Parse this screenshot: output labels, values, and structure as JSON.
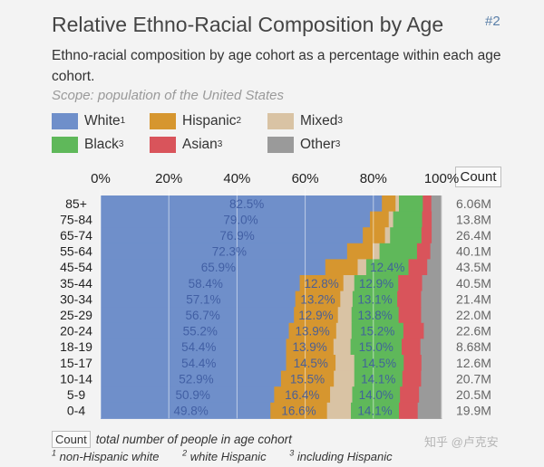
{
  "title": "Relative Ethno-Racial Composition by Age",
  "badge": "#2",
  "subtitle": "Ethno-racial composition by age cohort as a percentage within each age cohort.",
  "scope": "Scope: population of the United States",
  "legend": [
    {
      "label": "White",
      "sup": "1",
      "color": "#6f8fca"
    },
    {
      "label": "Hispanic",
      "sup": "2",
      "color": "#d6962f"
    },
    {
      "label": "Mixed",
      "sup": "3",
      "color": "#d9c3a4"
    },
    {
      "label": "Black",
      "sup": "3",
      "color": "#5fb85a"
    },
    {
      "label": "Asian",
      "sup": "3",
      "color": "#d9545b"
    },
    {
      "label": "Other",
      "sup": "3",
      "color": "#9a9a9a"
    }
  ],
  "count_header": "Count",
  "footnotes": {
    "count_box": "Count",
    "count_text": "total number of people in age cohort",
    "notes": [
      {
        "sup": "1",
        "text": "non-Hispanic white"
      },
      {
        "sup": "2",
        "text": "white Hispanic"
      },
      {
        "sup": "3",
        "text": "including Hispanic"
      }
    ]
  },
  "watermark": "知乎 @卢克安",
  "chart_data": {
    "type": "bar",
    "orientation": "horizontal",
    "stacked": true,
    "xlim": [
      0,
      100
    ],
    "x_ticks": [
      "0%",
      "20%",
      "40%",
      "60%",
      "80%",
      "100%"
    ],
    "categories": [
      "85+",
      "75-84",
      "65-74",
      "55-64",
      "45-54",
      "35-44",
      "30-34",
      "25-29",
      "20-24",
      "18-19",
      "15-17",
      "10-14",
      "5-9",
      "0-4"
    ],
    "counts": [
      "6.06M",
      "13.8M",
      "26.4M",
      "40.1M",
      "43.5M",
      "40.5M",
      "21.4M",
      "22.0M",
      "22.6M",
      "8.68M",
      "12.6M",
      "20.7M",
      "20.5M",
      "19.9M"
    ],
    "series": [
      {
        "name": "White",
        "color": "#6f8fca",
        "values": [
          82.5,
          79.0,
          76.9,
          72.3,
          65.9,
          58.4,
          57.1,
          56.7,
          55.2,
          54.4,
          54.4,
          52.9,
          50.9,
          49.8
        ],
        "labels": [
          "82.5%",
          "79.0%",
          "76.9%",
          "72.3%",
          "65.9%",
          "58.4%",
          "57.1%",
          "56.7%",
          "55.2%",
          "54.4%",
          "54.4%",
          "52.9%",
          "50.9%",
          "49.8%"
        ]
      },
      {
        "name": "Hispanic",
        "color": "#d6962f",
        "values": [
          4.0,
          5.5,
          6.5,
          7.5,
          9.5,
          12.8,
          13.2,
          12.9,
          13.9,
          13.9,
          14.5,
          15.5,
          16.4,
          16.6
        ],
        "labels": [
          "",
          "",
          "",
          "",
          "",
          "12.8%",
          "13.2%",
          "12.9%",
          "13.9%",
          "13.9%",
          "14.5%",
          "15.5%",
          "16.4%",
          "16.6%"
        ]
      },
      {
        "name": "Mixed",
        "color": "#d9c3a4",
        "values": [
          1.0,
          1.3,
          1.5,
          2.0,
          2.5,
          3.2,
          3.6,
          4.0,
          4.5,
          5.0,
          5.5,
          6.0,
          6.5,
          7.0
        ],
        "labels": [
          "",
          "",
          "",
          "",
          "",
          "",
          "",
          "",
          "",
          "",
          "",
          "",
          "",
          ""
        ]
      },
      {
        "name": "Black",
        "color": "#5fb85a",
        "values": [
          7.0,
          8.5,
          9.2,
          11.0,
          12.4,
          12.9,
          13.1,
          13.8,
          15.2,
          15.0,
          14.5,
          14.1,
          14.0,
          14.1
        ],
        "labels": [
          "",
          "",
          "",
          "",
          "12.4%",
          "12.9%",
          "13.1%",
          "13.8%",
          "15.2%",
          "15.0%",
          "14.5%",
          "14.1%",
          "14.0%",
          "14.1%"
        ]
      },
      {
        "name": "Asian",
        "color": "#d9545b",
        "values": [
          2.5,
          2.8,
          3.0,
          3.9,
          5.5,
          7.0,
          7.0,
          6.6,
          6.0,
          5.5,
          5.2,
          5.5,
          5.6,
          5.5
        ],
        "labels": [
          "",
          "",
          "",
          "",
          "",
          "",
          "",
          "",
          "",
          "",
          "",
          "",
          "",
          ""
        ]
      },
      {
        "name": "Other",
        "color": "#9a9a9a",
        "values": [
          3.0,
          2.9,
          2.9,
          3.3,
          4.2,
          5.7,
          6.0,
          6.0,
          5.2,
          6.2,
          5.9,
          6.0,
          6.6,
          7.0
        ],
        "labels": [
          "",
          "",
          "",
          "",
          "",
          "",
          "",
          "",
          "",
          "",
          "",
          "",
          "",
          ""
        ]
      }
    ]
  }
}
